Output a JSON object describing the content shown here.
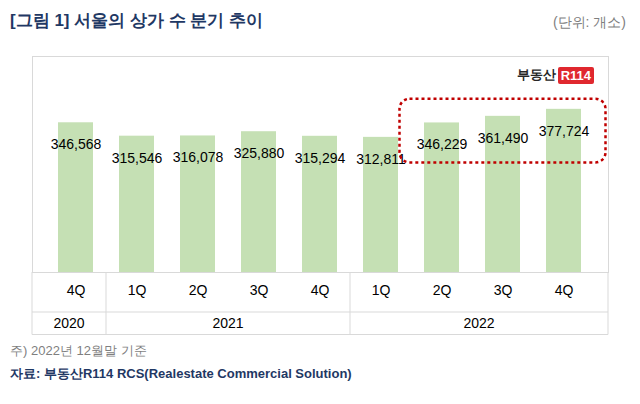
{
  "chart_data": {
    "type": "bar",
    "title": "[그림 1] 서울의 상가 수 분기 추이",
    "subtitle": "(단위: 개소)",
    "categories": [
      "4Q",
      "1Q",
      "2Q",
      "3Q",
      "4Q",
      "1Q",
      "2Q",
      "3Q",
      "4Q"
    ],
    "category_groups": [
      {
        "label": "2020",
        "count": 1
      },
      {
        "label": "2021",
        "count": 4
      },
      {
        "label": "2022",
        "count": 4
      }
    ],
    "values": [
      346568,
      315546,
      316078,
      325880,
      315294,
      312811,
      346229,
      361490,
      377724
    ],
    "value_labels": [
      "346,568",
      "315,546",
      "316,078",
      "325,880",
      "315,294",
      "312,811",
      "346,229",
      "361,490",
      "377,724"
    ],
    "color": "#c5e0b4",
    "ylim": [
      0,
      500000
    ],
    "data_labels": true,
    "tick_labels": "x",
    "highlight": {
      "from": 6,
      "to": 8,
      "color": "#c00000"
    },
    "logo": [
      "부동산",
      "R114"
    ],
    "annotations": [
      "주) 2022년 12월말 기준",
      "자료: 부동산R114 RCS(Realestate Commercial Solution)"
    ]
  }
}
